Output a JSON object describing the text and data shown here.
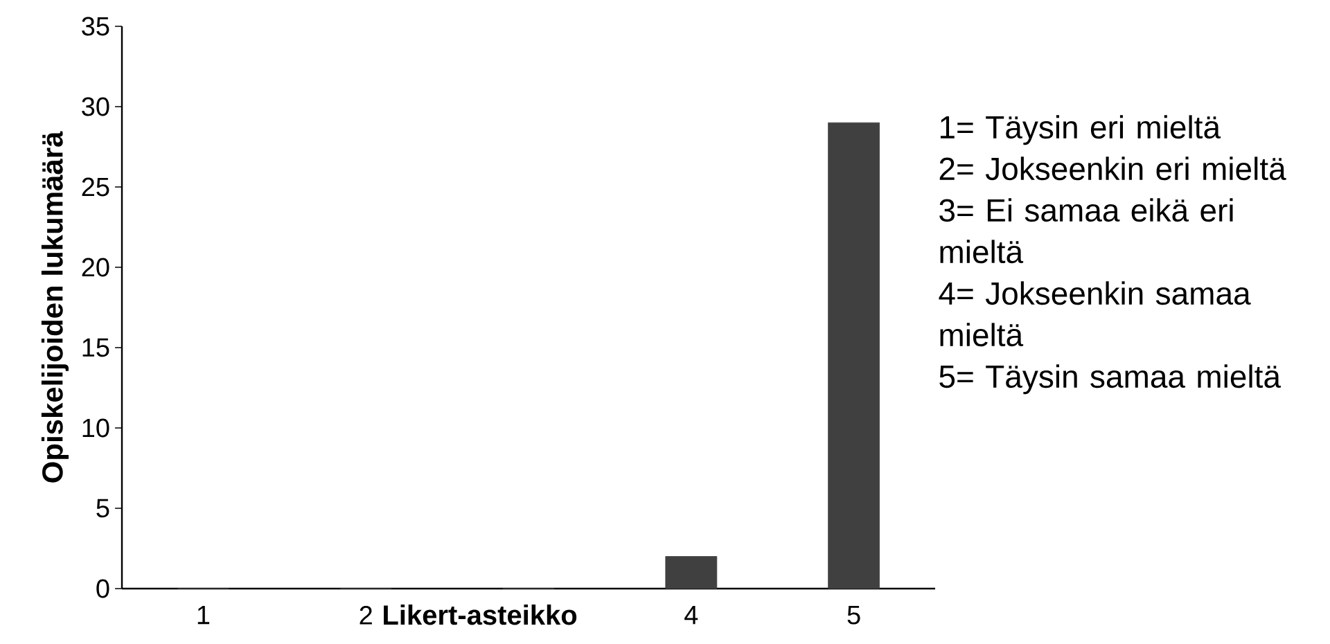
{
  "chart_data": {
    "type": "bar",
    "xlabel": "Likert-asteikko",
    "ylabel": "Opiskelijoiden lukumäärä",
    "categories": [
      "1",
      "2",
      null,
      "4",
      "5"
    ],
    "values": [
      0,
      0,
      0,
      2,
      29
    ],
    "color": "#404040",
    "ylim": [
      0,
      35
    ],
    "yticks": [
      0,
      5,
      10,
      15,
      20,
      25,
      30,
      35
    ],
    "grid": false,
    "annotations": [
      "1= Täysin eri mieltä",
      "2= Jokseenkin eri mieltä",
      "3= Ei samaa eikä eri mieltä",
      "4= Jokseenkin samaa mieltä",
      "5= Täysin samaa mieltä"
    ]
  }
}
